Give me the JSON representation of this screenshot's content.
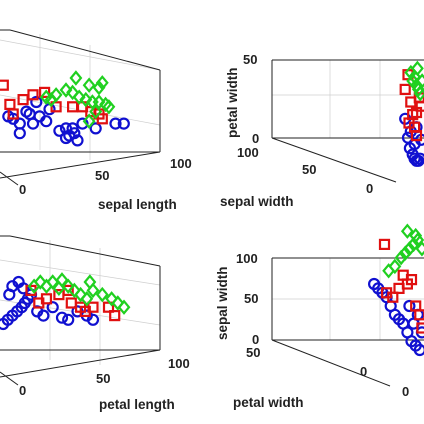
{
  "chart_data": [
    {
      "type": "scatter",
      "panel": "top-left",
      "xlabel": "sepal length",
      "ylabel": "",
      "zlabel": "",
      "xticks": [
        "0",
        "50",
        "100"
      ],
      "zticks": [],
      "grid": true,
      "series": [
        {
          "color": "#1010d0",
          "marker": "circle",
          "points": [
            [
              5,
              14
            ],
            [
              8,
              13
            ],
            [
              12,
              11
            ],
            [
              16,
              16
            ],
            [
              20,
              11
            ],
            [
              24,
              14
            ],
            [
              28,
              12
            ],
            [
              36,
              8
            ],
            [
              40,
              9
            ],
            [
              44,
              9
            ],
            [
              50,
              11
            ],
            [
              58,
              9
            ],
            [
              70,
              11
            ],
            [
              75,
              11
            ],
            [
              40,
              5
            ],
            [
              42,
              6
            ],
            [
              45,
              7
            ],
            [
              47,
              4
            ],
            [
              12,
              7
            ],
            [
              18,
              15
            ],
            [
              22,
              20
            ],
            [
              30,
              17
            ]
          ]
        },
        {
          "color": "#e01010",
          "marker": "square",
          "points": [
            [
              2,
              27
            ],
            [
              6,
              19
            ],
            [
              8,
              15
            ],
            [
              14,
              21
            ],
            [
              20,
              23
            ],
            [
              27,
              24
            ],
            [
              34,
              18
            ],
            [
              44,
              18
            ],
            [
              50,
              18
            ],
            [
              55,
              16
            ],
            [
              60,
              15
            ],
            [
              62,
              13
            ]
          ]
        },
        {
          "color": "#20d020",
          "marker": "diamond",
          "points": [
            [
              28,
              22
            ],
            [
              31,
              21
            ],
            [
              34,
              23
            ],
            [
              40,
              25
            ],
            [
              44,
              24
            ],
            [
              48,
              22
            ],
            [
              52,
              21
            ],
            [
              56,
              20
            ],
            [
              60,
              20
            ],
            [
              64,
              19
            ],
            [
              66,
              18
            ],
            [
              46,
              30
            ],
            [
              54,
              27
            ],
            [
              60,
              26
            ],
            [
              54,
              12
            ],
            [
              58,
              16
            ],
            [
              62,
              28
            ]
          ]
        }
      ]
    },
    {
      "type": "scatter",
      "panel": "top-right",
      "xlabel": "sepal width",
      "ylabel": "",
      "zlabel": "petal width",
      "xticks": [
        "0",
        "50",
        "100"
      ],
      "zticks": [
        "0",
        "50"
      ],
      "grid": true,
      "series": [
        {
          "color": "#1010d0",
          "marker": "circle",
          "points": [
            [
              80,
              22
            ],
            [
              83,
              13
            ],
            [
              85,
              8
            ],
            [
              88,
              5
            ],
            [
              90,
              3
            ],
            [
              92,
              2
            ],
            [
              94,
              2
            ],
            [
              96,
              3
            ],
            [
              90,
              10
            ],
            [
              86,
              16
            ],
            [
              92,
              18
            ],
            [
              97,
              12
            ]
          ]
        },
        {
          "color": "#e01010",
          "marker": "square",
          "points": [
            [
              80,
              36
            ],
            [
              83,
              43
            ],
            [
              86,
              30
            ],
            [
              88,
              24
            ],
            [
              90,
              18
            ],
            [
              92,
              25
            ],
            [
              95,
              32
            ],
            [
              97,
              28
            ],
            [
              84,
              20
            ],
            [
              92,
              14
            ]
          ]
        },
        {
          "color": "#20d020",
          "marker": "diamond",
          "points": [
            [
              86,
              44
            ],
            [
              88,
              40
            ],
            [
              90,
              42
            ],
            [
              92,
              38
            ],
            [
              94,
              36
            ],
            [
              96,
              34
            ],
            [
              98,
              40
            ],
            [
              93,
              46
            ]
          ]
        }
      ]
    },
    {
      "type": "scatter",
      "panel": "bottom-left",
      "xlabel": "petal length",
      "ylabel": "",
      "zlabel": "",
      "xticks": [
        "0",
        "50",
        "100"
      ],
      "zticks": [],
      "grid": true,
      "series": [
        {
          "color": "#1010d0",
          "marker": "circle",
          "points": [
            [
              2,
              10
            ],
            [
              5,
              12
            ],
            [
              8,
              14
            ],
            [
              11,
              16
            ],
            [
              14,
              18
            ],
            [
              16,
              20
            ],
            [
              18,
              22
            ],
            [
              20,
              24
            ],
            [
              24,
              16
            ],
            [
              28,
              14
            ],
            [
              34,
              18
            ],
            [
              40,
              13
            ],
            [
              44,
              12
            ],
            [
              50,
              16
            ],
            [
              56,
              14
            ],
            [
              60,
              12
            ],
            [
              6,
              24
            ],
            [
              8,
              28
            ],
            [
              12,
              30
            ],
            [
              15,
              27
            ]
          ]
        },
        {
          "color": "#e01010",
          "marker": "square",
          "points": [
            [
              20,
              26
            ],
            [
              25,
              20
            ],
            [
              30,
              22
            ],
            [
              38,
              24
            ],
            [
              44,
              26
            ],
            [
              46,
              20
            ],
            [
              52,
              18
            ],
            [
              55,
              16
            ],
            [
              60,
              18
            ],
            [
              70,
              18
            ],
            [
              74,
              14
            ]
          ]
        },
        {
          "color": "#20d020",
          "marker": "diamond",
          "points": [
            [
              22,
              28
            ],
            [
              26,
              30
            ],
            [
              30,
              28
            ],
            [
              34,
              30
            ],
            [
              38,
              27
            ],
            [
              40,
              31
            ],
            [
              44,
              28
            ],
            [
              48,
              26
            ],
            [
              52,
              24
            ],
            [
              56,
              22
            ],
            [
              60,
              26
            ],
            [
              66,
              24
            ],
            [
              72,
              22
            ],
            [
              76,
              20
            ],
            [
              80,
              18
            ],
            [
              58,
              30
            ]
          ]
        }
      ]
    },
    {
      "type": "scatter",
      "panel": "bottom-right",
      "xlabel": "petal width",
      "ylabel": "",
      "zlabel": "sepal width",
      "xticks": [
        "0",
        "50"
      ],
      "zticks": [
        "0",
        "50",
        "100"
      ],
      "grid": true,
      "series": [
        {
          "color": "#1010d0",
          "marker": "circle",
          "points": [
            [
              52,
              40
            ],
            [
              56,
              38
            ],
            [
              60,
              36
            ],
            [
              64,
              34
            ],
            [
              68,
              30
            ],
            [
              72,
              26
            ],
            [
              76,
              24
            ],
            [
              80,
              22
            ],
            [
              84,
              18
            ],
            [
              88,
              14
            ],
            [
              92,
              12
            ],
            [
              96,
              10
            ],
            [
              90,
              22
            ],
            [
              94,
              26
            ],
            [
              98,
              18
            ],
            [
              86,
              30
            ]
          ]
        },
        {
          "color": "#e01010",
          "marker": "square",
          "points": [
            [
              64,
              36
            ],
            [
              70,
              34
            ],
            [
              76,
              38
            ],
            [
              80,
              44
            ],
            [
              84,
              40
            ],
            [
              88,
              42
            ],
            [
              92,
              30
            ],
            [
              96,
              26
            ],
            [
              98,
              20
            ],
            [
              62,
              58
            ]
          ]
        },
        {
          "color": "#20d020",
          "marker": "diamond",
          "points": [
            [
              66,
              46
            ],
            [
              72,
              48
            ],
            [
              78,
              52
            ],
            [
              82,
              54
            ],
            [
              86,
              56
            ],
            [
              90,
              58
            ],
            [
              94,
              60
            ],
            [
              98,
              56
            ],
            [
              84,
              64
            ],
            [
              92,
              62
            ]
          ]
        }
      ]
    }
  ]
}
